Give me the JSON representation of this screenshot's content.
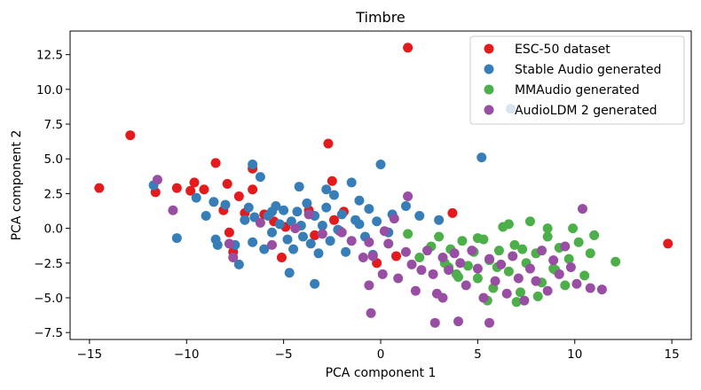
{
  "chart_data": {
    "type": "scatter",
    "title": "Timbre",
    "xlabel": "PCA component 1",
    "ylabel": "PCA component 2",
    "xlim": [
      -16,
      16
    ],
    "ylim": [
      -8,
      14.2
    ],
    "xticks": [
      -15,
      -10,
      -5,
      0,
      5,
      10,
      15
    ],
    "yticks": [
      -7.5,
      -5.0,
      -2.5,
      0.0,
      2.5,
      5.0,
      7.5,
      10.0,
      12.5
    ],
    "xtick_labels": [
      "−15",
      "−10",
      "−5",
      "0",
      "5",
      "10",
      "15"
    ],
    "ytick_labels": [
      "−7.5",
      "−5.0",
      "−2.5",
      "0.0",
      "2.5",
      "5.0",
      "7.5",
      "10.0",
      "12.5"
    ],
    "legend_position": "top-right",
    "series": [
      {
        "name": "ESC-50 dataset",
        "color": "#e41a1c",
        "points": [
          [
            -14.5,
            2.9
          ],
          [
            -12.9,
            6.7
          ],
          [
            1.4,
            13.0
          ],
          [
            14.8,
            -1.1
          ],
          [
            -11.6,
            2.6
          ],
          [
            -10.5,
            2.9
          ],
          [
            -9.8,
            2.7
          ],
          [
            -9.6,
            3.3
          ],
          [
            -9.1,
            2.8
          ],
          [
            -8.5,
            4.7
          ],
          [
            -8.1,
            1.3
          ],
          [
            -7.9,
            3.2
          ],
          [
            -7.3,
            2.3
          ],
          [
            -7.0,
            1.1
          ],
          [
            -6.6,
            2.8
          ],
          [
            -6.6,
            4.3
          ],
          [
            -6.0,
            1.0
          ],
          [
            -5.1,
            -2.1
          ],
          [
            -4.9,
            0.1
          ],
          [
            -3.7,
            1.3
          ],
          [
            -3.4,
            -0.5
          ],
          [
            -2.7,
            6.1
          ],
          [
            -2.5,
            3.4
          ],
          [
            -2.4,
            0.6
          ],
          [
            -2.1,
            -0.2
          ],
          [
            -1.9,
            1.2
          ],
          [
            -0.2,
            -2.5
          ],
          [
            0.8,
            -2.0
          ],
          [
            3.7,
            1.1
          ],
          [
            -7.8,
            -0.3
          ],
          [
            -5.5,
            0.5
          ],
          [
            -7.6,
            -1.7
          ]
        ]
      },
      {
        "name": "Stable Audio generated",
        "color": "#377eb8",
        "points": [
          [
            -11.7,
            3.1
          ],
          [
            -10.5,
            -0.7
          ],
          [
            -9.5,
            2.2
          ],
          [
            -9.0,
            0.9
          ],
          [
            -8.6,
            1.9
          ],
          [
            -8.5,
            -0.8
          ],
          [
            -8.0,
            1.7
          ],
          [
            -7.5,
            -1.2
          ],
          [
            -7.3,
            -2.6
          ],
          [
            -7.0,
            0.6
          ],
          [
            -6.8,
            1.5
          ],
          [
            -6.6,
            4.6
          ],
          [
            -6.5,
            0.8
          ],
          [
            -6.2,
            3.7
          ],
          [
            -5.8,
            0.9
          ],
          [
            -5.6,
            -0.3
          ],
          [
            -5.4,
            1.6
          ],
          [
            -5.2,
            0.3
          ],
          [
            -5.0,
            1.3
          ],
          [
            -4.8,
            -0.8
          ],
          [
            -4.6,
            0.5
          ],
          [
            -4.5,
            -1.5
          ],
          [
            -4.3,
            1.2
          ],
          [
            -4.1,
            0.2
          ],
          [
            -4.0,
            -0.6
          ],
          [
            -3.8,
            1.8
          ],
          [
            -3.6,
            -1.1
          ],
          [
            -3.4,
            0.9
          ],
          [
            -3.2,
            -1.8
          ],
          [
            -3.0,
            0.2
          ],
          [
            -2.8,
            1.5
          ],
          [
            -2.6,
            -0.9
          ],
          [
            -2.4,
            2.4
          ],
          [
            -2.2,
            -0.1
          ],
          [
            -2.0,
            1.0
          ],
          [
            -1.8,
            -1.7
          ],
          [
            -1.5,
            3.3
          ],
          [
            -1.3,
            0.6
          ],
          [
            -1.1,
            2.0
          ],
          [
            -0.8,
            -0.6
          ],
          [
            -0.6,
            1.4
          ],
          [
            -0.4,
            -1.9
          ],
          [
            -0.2,
            0.5
          ],
          [
            0.0,
            4.6
          ],
          [
            0.4,
            -0.3
          ],
          [
            0.6,
            1.0
          ],
          [
            1.3,
            1.6
          ],
          [
            2.0,
            0.9
          ],
          [
            3.0,
            0.6
          ],
          [
            5.2,
            5.1
          ],
          [
            6.7,
            8.6
          ],
          [
            -5.6,
            1.2
          ],
          [
            -4.7,
            -3.2
          ],
          [
            -3.4,
            -4.0
          ],
          [
            -6.6,
            -1.0
          ],
          [
            -8.4,
            -1.2
          ],
          [
            -6.0,
            -1.5
          ],
          [
            -1.1,
            0.3
          ],
          [
            -2.8,
            2.8
          ],
          [
            -4.2,
            3.0
          ]
        ]
      },
      {
        "name": "MMAudio generated",
        "color": "#4daf4a",
        "points": [
          [
            1.4,
            -0.4
          ],
          [
            2.0,
            -2.1
          ],
          [
            2.6,
            -1.3
          ],
          [
            3.0,
            -0.6
          ],
          [
            3.3,
            -2.5
          ],
          [
            3.6,
            -1.5
          ],
          [
            3.9,
            -3.3
          ],
          [
            4.2,
            -0.9
          ],
          [
            4.5,
            -2.7
          ],
          [
            4.8,
            -1.7
          ],
          [
            5.0,
            -3.6
          ],
          [
            5.3,
            -0.8
          ],
          [
            5.6,
            -2.3
          ],
          [
            5.8,
            -4.3
          ],
          [
            6.1,
            -1.6
          ],
          [
            6.3,
            0.1
          ],
          [
            6.6,
            -3.1
          ],
          [
            6.9,
            -1.2
          ],
          [
            7.2,
            -4.6
          ],
          [
            7.5,
            -2.5
          ],
          [
            7.7,
            0.5
          ],
          [
            8.0,
            -1.8
          ],
          [
            8.3,
            -3.9
          ],
          [
            8.6,
            -0.6
          ],
          [
            8.9,
            -2.9
          ],
          [
            9.2,
            -1.4
          ],
          [
            9.5,
            -4.1
          ],
          [
            9.7,
            -2.2
          ],
          [
            9.9,
            0.0
          ],
          [
            10.2,
            -1.0
          ],
          [
            10.5,
            -3.4
          ],
          [
            10.8,
            -1.8
          ],
          [
            11.0,
            -0.5
          ],
          [
            12.1,
            -2.4
          ],
          [
            7.0,
            -5.3
          ],
          [
            5.5,
            -5.2
          ],
          [
            8.1,
            -4.9
          ],
          [
            4.0,
            -3.5
          ],
          [
            6.0,
            -2.8
          ],
          [
            9.0,
            -3.0
          ],
          [
            3.5,
            -2.8
          ],
          [
            6.6,
            0.3
          ],
          [
            8.6,
            0.0
          ],
          [
            5.0,
            -0.7
          ],
          [
            7.3,
            -1.5
          ]
        ]
      },
      {
        "name": "AudioLDM 2 generated",
        "color": "#984ea3",
        "points": [
          [
            -11.5,
            3.5
          ],
          [
            -10.7,
            1.3
          ],
          [
            -7.8,
            -1.1
          ],
          [
            -7.6,
            -2.1
          ],
          [
            -6.2,
            0.4
          ],
          [
            -5.6,
            -1.2
          ],
          [
            -4.4,
            0.0
          ],
          [
            -3.7,
            1.0
          ],
          [
            -3.0,
            -0.4
          ],
          [
            -2.0,
            -0.3
          ],
          [
            -1.5,
            -0.9
          ],
          [
            -0.6,
            -1.0
          ],
          [
            -0.9,
            -2.1
          ],
          [
            -0.4,
            -2.0
          ],
          [
            -0.6,
            -4.1
          ],
          [
            0.1,
            -3.3
          ],
          [
            0.4,
            -1.1
          ],
          [
            0.7,
            0.7
          ],
          [
            0.9,
            -3.6
          ],
          [
            1.3,
            -1.7
          ],
          [
            1.6,
            -2.6
          ],
          [
            1.8,
            -4.5
          ],
          [
            2.1,
            -3.0
          ],
          [
            2.4,
            -1.6
          ],
          [
            2.7,
            -3.3
          ],
          [
            2.9,
            -4.7
          ],
          [
            3.2,
            -2.1
          ],
          [
            3.5,
            -3.0
          ],
          [
            3.8,
            -1.8
          ],
          [
            4.1,
            -2.5
          ],
          [
            4.4,
            -4.1
          ],
          [
            4.7,
            -1.6
          ],
          [
            5.0,
            -2.9
          ],
          [
            5.3,
            -5.0
          ],
          [
            5.6,
            -2.2
          ],
          [
            5.9,
            -3.8
          ],
          [
            6.2,
            -2.6
          ],
          [
            6.5,
            -4.7
          ],
          [
            6.8,
            -2.0
          ],
          [
            7.1,
            -3.6
          ],
          [
            7.4,
            -5.2
          ],
          [
            7.7,
            -2.9
          ],
          [
            8.0,
            -3.8
          ],
          [
            8.3,
            -1.6
          ],
          [
            8.6,
            -4.5
          ],
          [
            8.9,
            -2.3
          ],
          [
            9.2,
            -3.3
          ],
          [
            9.5,
            -1.3
          ],
          [
            9.8,
            -2.8
          ],
          [
            10.1,
            -4.0
          ],
          [
            10.4,
            1.4
          ],
          [
            10.8,
            -4.3
          ],
          [
            11.4,
            -4.4
          ],
          [
            1.4,
            2.3
          ],
          [
            0.2,
            -0.2
          ],
          [
            2.8,
            -6.8
          ],
          [
            4.0,
            -6.7
          ],
          [
            5.6,
            -6.8
          ],
          [
            3.2,
            -5.0
          ],
          [
            -0.5,
            -6.1
          ]
        ]
      }
    ]
  }
}
